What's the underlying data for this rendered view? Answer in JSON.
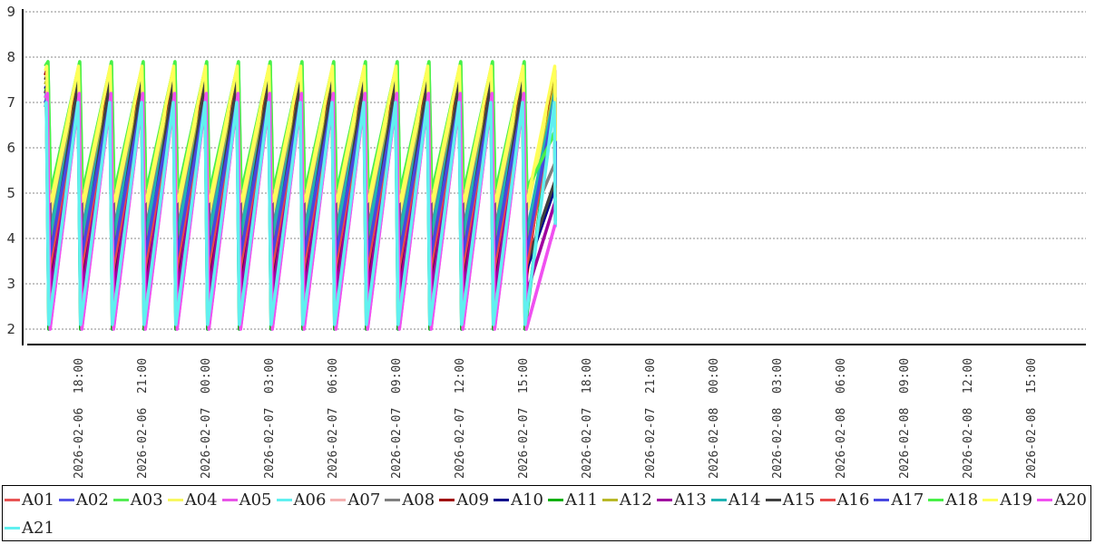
{
  "chart_data": {
    "type": "line",
    "title": "",
    "xlabel": "",
    "ylabel": "",
    "ylim": [
      1.7,
      9.05
    ],
    "y_ticks": [
      2,
      3,
      4,
      5,
      6,
      7,
      8,
      9
    ],
    "x_ticks": [
      "2026-02-06  18:00",
      "2026-02-06  21:00",
      "2026-02-07  00:00",
      "2026-02-07  03:00",
      "2026-02-07  06:00",
      "2026-02-07  09:00",
      "2026-02-07  12:00",
      "2026-02-07  15:00",
      "2026-02-07  18:00",
      "2026-02-07  21:00",
      "2026-02-08  00:00",
      "2026-02-08  03:00",
      "2026-02-08  06:00",
      "2026-02-08  09:00",
      "2026-02-08  12:00",
      "2026-02-08  15:00"
    ],
    "x_range_hours_from_first_tick": [
      -1.55,
      22.55
    ],
    "cycle_hours": 1.5,
    "grid": "horizontal dashed",
    "legend_placement": "bottom",
    "series": [
      {
        "name": "A01",
        "color": "#e85454",
        "min": 3.2,
        "max": 7.0
      },
      {
        "name": "A02",
        "color": "#5454e8",
        "min": 3.5,
        "max": 7.1
      },
      {
        "name": "A03",
        "color": "#54ec54",
        "min": 5.15,
        "max": 7.9
      },
      {
        "name": "A04",
        "color": "#f8f860",
        "min": 4.6,
        "max": 7.6
      },
      {
        "name": "A05",
        "color": "#e854e8",
        "min": 2.0,
        "max": 7.2
      },
      {
        "name": "A06",
        "color": "#60f0f0",
        "min": 2.0,
        "max": 7.0
      },
      {
        "name": "A07",
        "color": "#f4b0b0",
        "min": 4.0,
        "max": 7.0
      },
      {
        "name": "A08",
        "color": "#808080",
        "min": 4.2,
        "max": 7.5
      },
      {
        "name": "A09",
        "color": "#a00000",
        "min": 3.0,
        "max": 7.7
      },
      {
        "name": "A10",
        "color": "#00008c",
        "min": 3.3,
        "max": 7.4
      },
      {
        "name": "A11",
        "color": "#10b010",
        "min": 2.0,
        "max": 7.3
      },
      {
        "name": "A12",
        "color": "#b8b828",
        "min": 3.8,
        "max": 7.5
      },
      {
        "name": "A13",
        "color": "#a000a0",
        "min": 2.8,
        "max": 7.3
      },
      {
        "name": "A14",
        "color": "#20b4b4",
        "min": 4.0,
        "max": 7.2
      },
      {
        "name": "A15",
        "color": "#404040",
        "min": 3.4,
        "max": 7.6
      },
      {
        "name": "A16",
        "color": "#e84848",
        "min": 3.2,
        "max": 7.0
      },
      {
        "name": "A17",
        "color": "#4848e0",
        "min": 3.6,
        "max": 7.1
      },
      {
        "name": "A18",
        "color": "#48f048",
        "min": 5.1,
        "max": 7.9
      },
      {
        "name": "A19",
        "color": "#ffff58",
        "min": 4.8,
        "max": 7.8
      },
      {
        "name": "A20",
        "color": "#f050f0",
        "min": 2.0,
        "max": 7.2
      },
      {
        "name": "A21",
        "color": "#60f0f0",
        "min": 2.1,
        "max": 7.0
      }
    ]
  }
}
